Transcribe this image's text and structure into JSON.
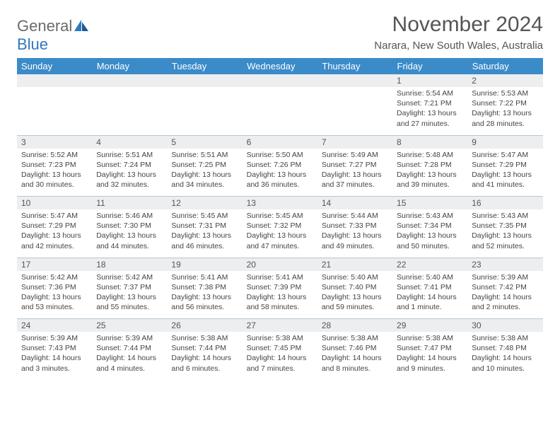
{
  "brand": {
    "part1": "General",
    "part2": "Blue",
    "logo_color": "#2f78bf"
  },
  "title": "November 2024",
  "location": "Narara, New South Wales, Australia",
  "colors": {
    "header_bg": "#3b8bc9",
    "header_text": "#ffffff",
    "daynum_bg": "#eceef0",
    "border": "#b9c5d1",
    "body_text": "#444444"
  },
  "weekdays": [
    "Sunday",
    "Monday",
    "Tuesday",
    "Wednesday",
    "Thursday",
    "Friday",
    "Saturday"
  ],
  "weeks": [
    [
      null,
      null,
      null,
      null,
      null,
      {
        "n": "1",
        "sr": "5:54 AM",
        "ss": "7:21 PM",
        "dl": "13 hours and 27 minutes."
      },
      {
        "n": "2",
        "sr": "5:53 AM",
        "ss": "7:22 PM",
        "dl": "13 hours and 28 minutes."
      }
    ],
    [
      {
        "n": "3",
        "sr": "5:52 AM",
        "ss": "7:23 PM",
        "dl": "13 hours and 30 minutes."
      },
      {
        "n": "4",
        "sr": "5:51 AM",
        "ss": "7:24 PM",
        "dl": "13 hours and 32 minutes."
      },
      {
        "n": "5",
        "sr": "5:51 AM",
        "ss": "7:25 PM",
        "dl": "13 hours and 34 minutes."
      },
      {
        "n": "6",
        "sr": "5:50 AM",
        "ss": "7:26 PM",
        "dl": "13 hours and 36 minutes."
      },
      {
        "n": "7",
        "sr": "5:49 AM",
        "ss": "7:27 PM",
        "dl": "13 hours and 37 minutes."
      },
      {
        "n": "8",
        "sr": "5:48 AM",
        "ss": "7:28 PM",
        "dl": "13 hours and 39 minutes."
      },
      {
        "n": "9",
        "sr": "5:47 AM",
        "ss": "7:29 PM",
        "dl": "13 hours and 41 minutes."
      }
    ],
    [
      {
        "n": "10",
        "sr": "5:47 AM",
        "ss": "7:29 PM",
        "dl": "13 hours and 42 minutes."
      },
      {
        "n": "11",
        "sr": "5:46 AM",
        "ss": "7:30 PM",
        "dl": "13 hours and 44 minutes."
      },
      {
        "n": "12",
        "sr": "5:45 AM",
        "ss": "7:31 PM",
        "dl": "13 hours and 46 minutes."
      },
      {
        "n": "13",
        "sr": "5:45 AM",
        "ss": "7:32 PM",
        "dl": "13 hours and 47 minutes."
      },
      {
        "n": "14",
        "sr": "5:44 AM",
        "ss": "7:33 PM",
        "dl": "13 hours and 49 minutes."
      },
      {
        "n": "15",
        "sr": "5:43 AM",
        "ss": "7:34 PM",
        "dl": "13 hours and 50 minutes."
      },
      {
        "n": "16",
        "sr": "5:43 AM",
        "ss": "7:35 PM",
        "dl": "13 hours and 52 minutes."
      }
    ],
    [
      {
        "n": "17",
        "sr": "5:42 AM",
        "ss": "7:36 PM",
        "dl": "13 hours and 53 minutes."
      },
      {
        "n": "18",
        "sr": "5:42 AM",
        "ss": "7:37 PM",
        "dl": "13 hours and 55 minutes."
      },
      {
        "n": "19",
        "sr": "5:41 AM",
        "ss": "7:38 PM",
        "dl": "13 hours and 56 minutes."
      },
      {
        "n": "20",
        "sr": "5:41 AM",
        "ss": "7:39 PM",
        "dl": "13 hours and 58 minutes."
      },
      {
        "n": "21",
        "sr": "5:40 AM",
        "ss": "7:40 PM",
        "dl": "13 hours and 59 minutes."
      },
      {
        "n": "22",
        "sr": "5:40 AM",
        "ss": "7:41 PM",
        "dl": "14 hours and 1 minute."
      },
      {
        "n": "23",
        "sr": "5:39 AM",
        "ss": "7:42 PM",
        "dl": "14 hours and 2 minutes."
      }
    ],
    [
      {
        "n": "24",
        "sr": "5:39 AM",
        "ss": "7:43 PM",
        "dl": "14 hours and 3 minutes."
      },
      {
        "n": "25",
        "sr": "5:39 AM",
        "ss": "7:44 PM",
        "dl": "14 hours and 4 minutes."
      },
      {
        "n": "26",
        "sr": "5:38 AM",
        "ss": "7:44 PM",
        "dl": "14 hours and 6 minutes."
      },
      {
        "n": "27",
        "sr": "5:38 AM",
        "ss": "7:45 PM",
        "dl": "14 hours and 7 minutes."
      },
      {
        "n": "28",
        "sr": "5:38 AM",
        "ss": "7:46 PM",
        "dl": "14 hours and 8 minutes."
      },
      {
        "n": "29",
        "sr": "5:38 AM",
        "ss": "7:47 PM",
        "dl": "14 hours and 9 minutes."
      },
      {
        "n": "30",
        "sr": "5:38 AM",
        "ss": "7:48 PM",
        "dl": "14 hours and 10 minutes."
      }
    ]
  ],
  "labels": {
    "sunrise": "Sunrise:",
    "sunset": "Sunset:",
    "daylight": "Daylight:"
  }
}
